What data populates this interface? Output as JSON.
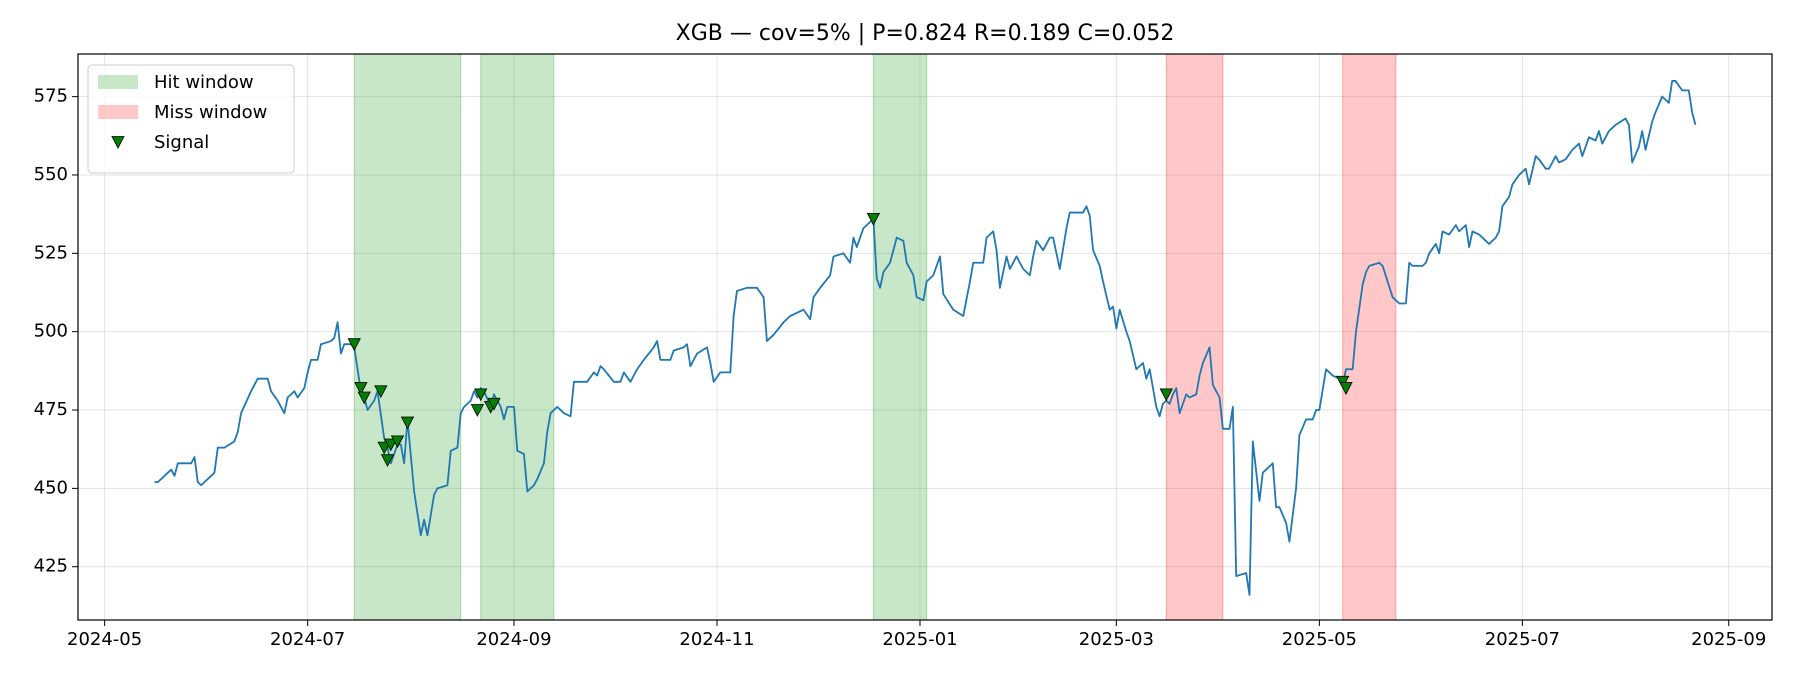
{
  "chart_data": {
    "type": "line",
    "title": "XGB — cov=5% | P=0.824 R=0.189 C=0.052",
    "x": [
      "2024-05-16",
      "2024-05-17",
      "2024-05-20",
      "2024-05-21",
      "2024-05-22",
      "2024-05-23",
      "2024-05-27",
      "2024-05-28",
      "2024-05-29",
      "2024-05-30",
      "2024-06-03",
      "2024-06-04",
      "2024-06-06",
      "2024-06-09",
      "2024-06-10",
      "2024-06-11",
      "2024-06-14",
      "2024-06-16",
      "2024-06-19",
      "2024-06-20",
      "2024-06-22",
      "2024-06-24",
      "2024-06-25",
      "2024-06-27",
      "2024-06-28",
      "2024-06-30",
      "2024-07-01",
      "2024-07-02",
      "2024-07-04",
      "2024-07-05",
      "2024-07-08",
      "2024-07-09",
      "2024-07-10",
      "2024-07-11",
      "2024-07-12",
      "2024-07-14",
      "2024-07-15",
      "2024-07-17",
      "2024-07-18",
      "2024-07-19",
      "2024-07-21",
      "2024-07-22",
      "2024-07-24",
      "2024-07-25",
      "2024-07-26",
      "2024-07-28",
      "2024-07-29",
      "2024-07-30",
      "2024-07-31",
      "2024-08-02",
      "2024-08-03",
      "2024-08-04",
      "2024-08-05",
      "2024-08-06",
      "2024-08-08",
      "2024-08-09",
      "2024-08-12",
      "2024-08-13",
      "2024-08-15",
      "2024-08-16",
      "2024-08-17",
      "2024-08-19",
      "2024-08-20",
      "2024-08-21",
      "2024-08-22",
      "2024-08-23",
      "2024-08-25",
      "2024-08-26",
      "2024-08-28",
      "2024-08-29",
      "2024-08-30",
      "2024-09-01",
      "2024-09-02",
      "2024-09-04",
      "2024-09-05",
      "2024-09-07",
      "2024-09-08",
      "2024-09-10",
      "2024-09-11",
      "2024-09-12",
      "2024-09-14",
      "2024-09-16",
      "2024-09-18",
      "2024-09-19",
      "2024-09-23",
      "2024-09-25",
      "2024-09-26",
      "2024-09-27",
      "2024-09-28",
      "2024-10-01",
      "2024-10-03",
      "2024-10-04",
      "2024-10-06",
      "2024-10-08",
      "2024-10-10",
      "2024-10-13",
      "2024-10-14",
      "2024-10-15",
      "2024-10-18",
      "2024-10-19",
      "2024-10-22",
      "2024-10-23",
      "2024-10-24",
      "2024-10-26",
      "2024-10-29",
      "2024-10-30",
      "2024-10-31",
      "2024-11-02",
      "2024-11-05",
      "2024-11-06",
      "2024-11-07",
      "2024-11-10",
      "2024-11-13",
      "2024-11-15",
      "2024-11-16",
      "2024-11-18",
      "2024-11-21",
      "2024-11-23",
      "2024-11-27",
      "2024-11-29",
      "2024-11-30",
      "2024-12-02",
      "2024-12-05",
      "2024-12-06",
      "2024-12-09",
      "2024-12-11",
      "2024-12-12",
      "2024-12-13",
      "2024-12-15",
      "2024-12-18",
      "2024-12-19",
      "2024-12-20",
      "2024-12-21",
      "2024-12-23",
      "2024-12-25",
      "2024-12-27",
      "2024-12-28",
      "2024-12-30",
      "2024-12-31",
      "2025-01-02",
      "2025-01-03",
      "2025-01-05",
      "2025-01-07",
      "2025-01-08",
      "2025-01-11",
      "2025-01-14",
      "2025-01-16",
      "2025-01-17",
      "2025-01-20",
      "2025-01-21",
      "2025-01-23",
      "2025-01-24",
      "2025-01-25",
      "2025-01-27",
      "2025-01-28",
      "2025-01-30",
      "2025-02-01",
      "2025-02-03",
      "2025-02-04",
      "2025-02-05",
      "2025-02-07",
      "2025-02-09",
      "2025-02-10",
      "2025-02-12",
      "2025-02-14",
      "2025-02-15",
      "2025-02-19",
      "2025-02-20",
      "2025-02-21",
      "2025-02-22",
      "2025-02-24",
      "2025-02-25",
      "2025-02-27",
      "2025-02-28",
      "2025-03-01",
      "2025-03-02",
      "2025-03-04",
      "2025-03-05",
      "2025-03-07",
      "2025-03-09",
      "2025-03-10",
      "2025-03-11",
      "2025-03-13",
      "2025-03-14",
      "2025-03-15",
      "2025-03-16",
      "2025-03-17",
      "2025-03-18",
      "2025-03-19",
      "2025-03-20",
      "2025-03-22",
      "2025-03-23",
      "2025-03-25",
      "2025-03-26",
      "2025-03-27",
      "2025-03-29",
      "2025-03-30",
      "2025-04-01",
      "2025-04-02",
      "2025-04-04",
      "2025-04-05",
      "2025-04-06",
      "2025-04-09",
      "2025-04-10",
      "2025-04-11",
      "2025-04-13",
      "2025-04-14",
      "2025-04-17",
      "2025-04-18",
      "2025-04-19",
      "2025-04-21",
      "2025-04-22",
      "2025-04-24",
      "2025-04-25",
      "2025-04-27",
      "2025-04-29",
      "2025-04-30",
      "2025-05-01",
      "2025-05-03",
      "2025-05-05",
      "2025-05-07",
      "2025-05-08",
      "2025-05-09",
      "2025-05-11",
      "2025-05-12",
      "2025-05-14",
      "2025-05-15",
      "2025-05-16",
      "2025-05-19",
      "2025-05-20",
      "2025-05-23",
      "2025-05-25",
      "2025-05-27",
      "2025-05-28",
      "2025-05-29",
      "2025-06-01",
      "2025-06-02",
      "2025-06-03",
      "2025-06-05",
      "2025-06-06",
      "2025-06-07",
      "2025-06-09",
      "2025-06-11",
      "2025-06-12",
      "2025-06-14",
      "2025-06-15",
      "2025-06-16",
      "2025-06-18",
      "2025-06-20",
      "2025-06-21",
      "2025-06-23",
      "2025-06-24",
      "2025-06-25",
      "2025-06-27",
      "2025-06-28",
      "2025-06-30",
      "2025-07-02",
      "2025-07-03",
      "2025-07-05",
      "2025-07-06",
      "2025-07-08",
      "2025-07-09",
      "2025-07-11",
      "2025-07-12",
      "2025-07-14",
      "2025-07-16",
      "2025-07-18",
      "2025-07-19",
      "2025-07-21",
      "2025-07-23",
      "2025-07-24",
      "2025-07-25",
      "2025-07-27",
      "2025-07-29",
      "2025-08-01",
      "2025-08-02",
      "2025-08-03",
      "2025-08-05",
      "2025-08-06",
      "2025-08-07",
      "2025-08-09",
      "2025-08-10",
      "2025-08-12",
      "2025-08-14",
      "2025-08-15",
      "2025-08-16",
      "2025-08-18",
      "2025-08-20",
      "2025-08-21",
      "2025-08-22"
    ],
    "series": [
      {
        "color": "#1f77b4",
        "values": [
          452,
          452,
          455,
          456,
          454,
          458,
          458,
          460,
          452,
          451,
          455,
          463,
          463,
          465,
          468,
          474,
          481,
          485,
          485,
          481,
          478,
          474,
          479,
          481,
          479,
          482,
          487,
          491,
          491,
          496,
          497,
          498,
          503,
          493,
          496,
          496,
          495,
          481,
          479,
          475,
          478,
          481,
          466,
          463,
          458,
          464,
          464,
          458,
          472,
          449,
          442,
          435,
          440,
          435,
          448,
          450,
          451,
          462,
          463,
          474,
          476,
          478,
          481,
          479,
          482,
          481,
          476,
          480,
          476,
          472,
          476,
          476,
          462,
          461,
          449,
          451,
          453,
          458,
          468,
          474,
          476,
          474,
          473,
          484,
          484,
          487,
          486,
          489,
          488,
          484,
          484,
          487,
          484,
          488,
          491,
          495,
          497,
          491,
          491,
          494,
          495,
          496,
          489,
          493,
          495,
          490,
          484,
          487,
          487,
          505,
          513,
          514,
          514,
          511,
          497,
          499,
          503,
          505,
          507,
          504,
          511,
          514,
          518,
          524,
          525,
          522,
          530,
          527,
          533,
          536,
          517,
          514,
          519,
          522,
          530,
          529,
          522,
          518,
          511,
          510,
          516,
          518,
          524,
          512,
          507,
          505,
          516,
          522,
          522,
          530,
          532,
          526,
          514,
          524,
          520,
          524,
          520,
          518,
          524,
          529,
          526,
          530,
          530,
          520,
          533,
          538,
          538,
          540,
          537,
          526,
          521,
          516,
          507,
          508,
          501,
          507,
          500,
          497,
          488,
          490,
          485,
          488,
          476,
          473,
          477,
          478,
          477,
          480,
          482,
          474,
          480,
          479,
          480,
          486,
          490,
          495,
          483,
          479,
          469,
          469,
          476,
          422,
          423,
          416,
          465,
          446,
          455,
          458,
          444,
          444,
          439,
          433,
          450,
          467,
          472,
          472,
          475,
          475,
          488,
          486,
          485,
          483,
          488,
          488,
          500,
          515,
          519,
          521,
          522,
          521,
          511,
          509,
          509,
          522,
          521,
          521,
          522,
          525,
          528,
          525,
          532,
          531,
          534,
          532,
          534,
          527,
          532,
          531,
          529,
          528,
          530,
          532,
          540,
          543,
          547,
          550,
          552,
          547,
          556,
          555,
          552,
          552,
          556,
          554,
          555,
          558,
          560,
          556,
          562,
          561,
          564,
          560,
          564,
          566,
          568,
          566,
          554,
          559,
          564,
          558,
          567,
          570,
          575,
          573,
          580,
          580,
          577,
          577,
          570,
          566
        ]
      }
    ],
    "signals": {
      "name": "Signal",
      "color": "#008000",
      "x": [
        "2024-07-15",
        "2024-07-17",
        "2024-07-18",
        "2024-07-23",
        "2024-07-24",
        "2024-07-25",
        "2024-07-26",
        "2024-07-28",
        "2024-07-31",
        "2024-08-21",
        "2024-08-22",
        "2024-08-25",
        "2024-08-26",
        "2024-12-18",
        "2025-03-16",
        "2025-05-08",
        "2025-05-09"
      ],
      "values": [
        496,
        482,
        479,
        481,
        463,
        459,
        464,
        465,
        471,
        475,
        480,
        476,
        477,
        536,
        480,
        484,
        482
      ]
    },
    "spans": [
      {
        "name": "Hit window",
        "color": "#2ca02c",
        "alpha": 0.26,
        "ranges": [
          [
            "2024-07-15",
            "2024-08-16"
          ],
          [
            "2024-08-22",
            "2024-09-13"
          ],
          [
            "2024-12-18",
            "2025-01-03"
          ]
        ]
      },
      {
        "name": "Miss window",
        "color": "#ff0000",
        "alpha": 0.22,
        "ranges": [
          [
            "2025-03-16",
            "2025-04-02"
          ],
          [
            "2025-05-08",
            "2025-05-24"
          ]
        ]
      }
    ],
    "xlim": [
      "2024-04-23",
      "2025-09-14"
    ],
    "xticks": [
      {
        "value": "2024-05-01",
        "label": "2024-05"
      },
      {
        "value": "2024-07-01",
        "label": "2024-07"
      },
      {
        "value": "2024-09-01",
        "label": "2024-09"
      },
      {
        "value": "2024-11-01",
        "label": "2024-11"
      },
      {
        "value": "2025-01-01",
        "label": "2025-01"
      },
      {
        "value": "2025-03-01",
        "label": "2025-03"
      },
      {
        "value": "2025-05-01",
        "label": "2025-05"
      },
      {
        "value": "2025-07-01",
        "label": "2025-07"
      },
      {
        "value": "2025-09-01",
        "label": "2025-09"
      }
    ],
    "ylim": [
      408,
      588.6
    ],
    "yticks": [
      425,
      450,
      475,
      500,
      525,
      550,
      575
    ],
    "grid": true,
    "legend": "upper left"
  }
}
